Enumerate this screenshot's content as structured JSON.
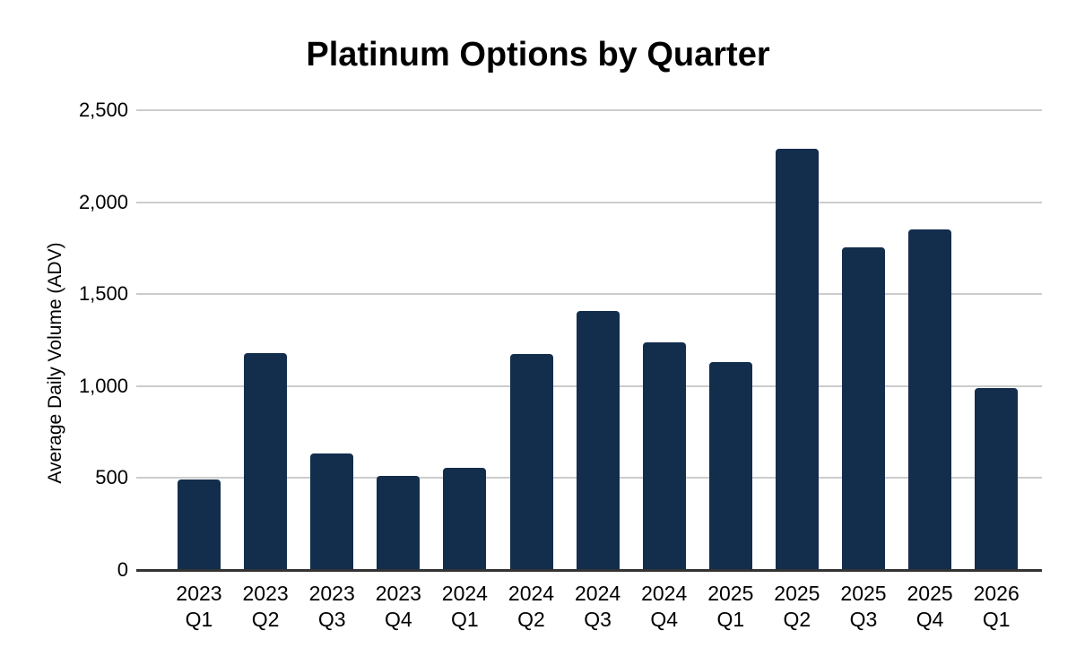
{
  "chart_data": {
    "type": "bar",
    "title": "Platinum Options by Quarter",
    "xlabel": "",
    "ylabel": "Average Daily Volume (ADV)",
    "categories": [
      "2023 Q1",
      "2023 Q2",
      "2023 Q3",
      "2023 Q4",
      "2024 Q1",
      "2024 Q2",
      "2024 Q3",
      "2024 Q4",
      "2025 Q1",
      "2025 Q2",
      "2025 Q3",
      "2025 Q4",
      "2026 Q1"
    ],
    "values": [
      490,
      1180,
      635,
      510,
      555,
      1175,
      1410,
      1240,
      1130,
      2290,
      1755,
      1850,
      990
    ],
    "ylim": [
      0,
      2500
    ],
    "ytick_interval": 500,
    "ytick_labels": [
      "0",
      "500",
      "1,000",
      "1,500",
      "2,000",
      "2,500"
    ],
    "grid": true,
    "legend": "none",
    "bar_color": "#132d4c",
    "gridline_color": "#cccccc",
    "axis_line_color": "#333333",
    "text_color": "#000000"
  }
}
